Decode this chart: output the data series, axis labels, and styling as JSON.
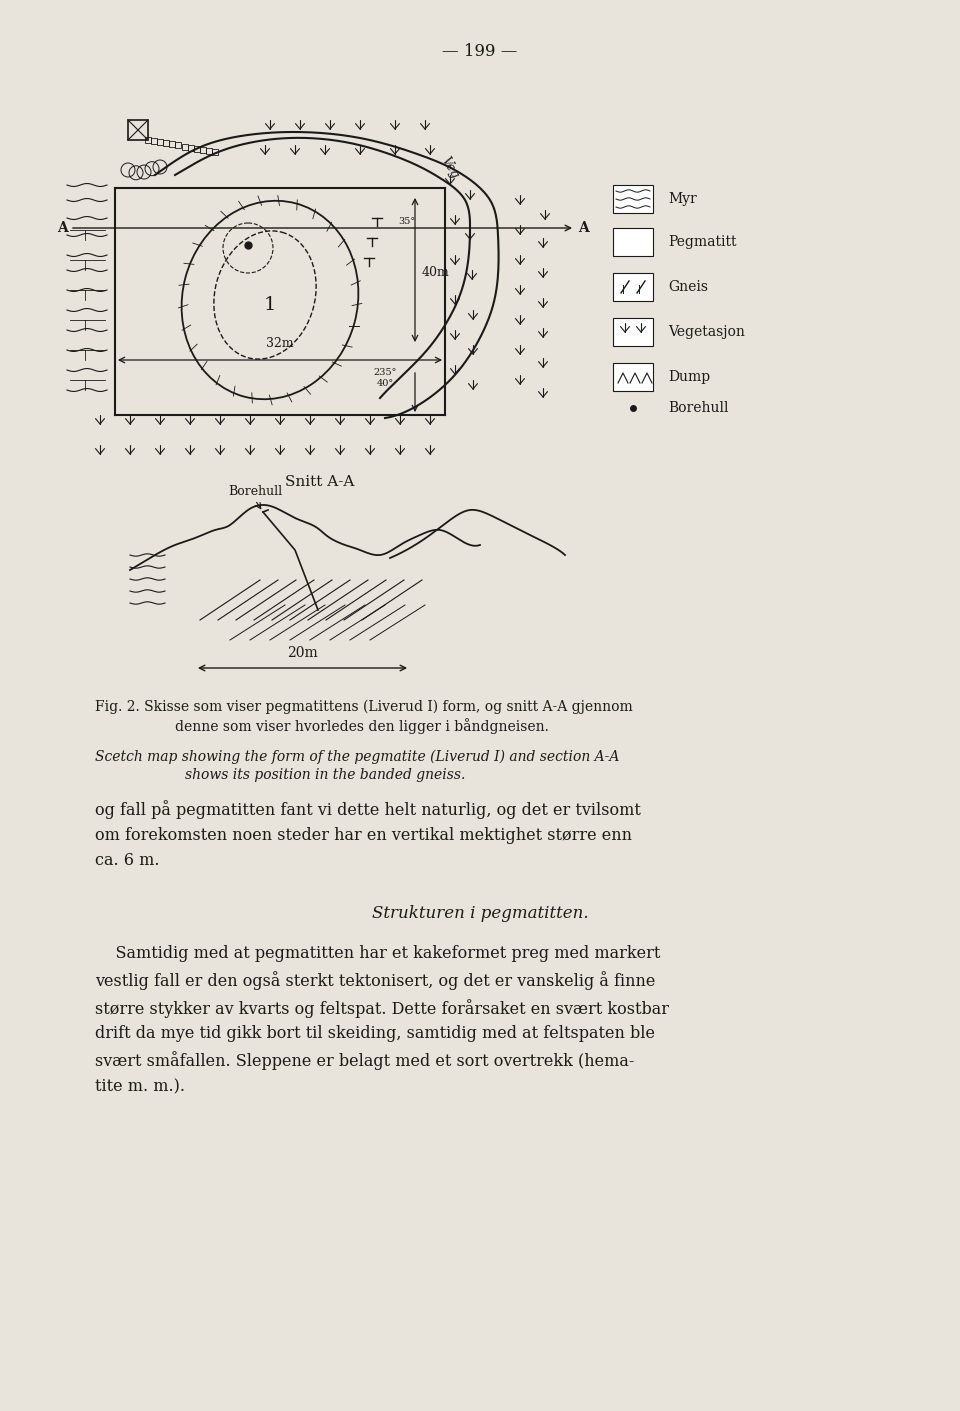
{
  "page_number": "— 199 —",
  "bg_color": "#e8e4dc",
  "fig_caption_norwegian": "Fig. 2. Skisse som viser pegmatittens (Liverud I) form, og snitt A-A gjennom\ndenne som viser hvorledes den ligger i båndgneisen.",
  "fig_caption_english": "Scetch map showing the form of the pegmatite (Liverud I) and section A-A\nshows its position in the banded gneiss.",
  "snitt_label": "Snitt A-A",
  "borehull_label": "Borehull",
  "scale_20m": "20m",
  "legend_items": [
    {
      "symbol": "myr",
      "label": "Myr"
    },
    {
      "symbol": "pegmatitt",
      "label": "Pegmatitt"
    },
    {
      "symbol": "gneis",
      "label": "Gneis"
    },
    {
      "symbol": "vegetasjon",
      "label": "Vegetasjon"
    },
    {
      "symbol": "dump",
      "label": "Dump"
    },
    {
      "symbol": "borehull",
      "label": "Borehull"
    }
  ],
  "body_text_1": "og fall på pegmatitten fant vi dette helt naturlig, og det er tvilsomt\nom forekomsten noen steder har en vertikal mektighet større enn\nca. 6 m.",
  "section_heading": "Strukturen i pegmatitten.",
  "body_text_2": "    Samtidig med at pegmatitten har et kakeformet preg med markert\nvestlig fall er den også sterkt tektonisert, og det er vanskelig å finne\nstørre stykker av kvarts og feltspat. Dette forårsaket en svært kostbar\ndrift da mye tid gikk bort til skeiding, samtidig med at feltspaten ble\nsvært småfallen. Sleppene er belagt med et sort overtrekk (hema-\ntite m. m.)."
}
